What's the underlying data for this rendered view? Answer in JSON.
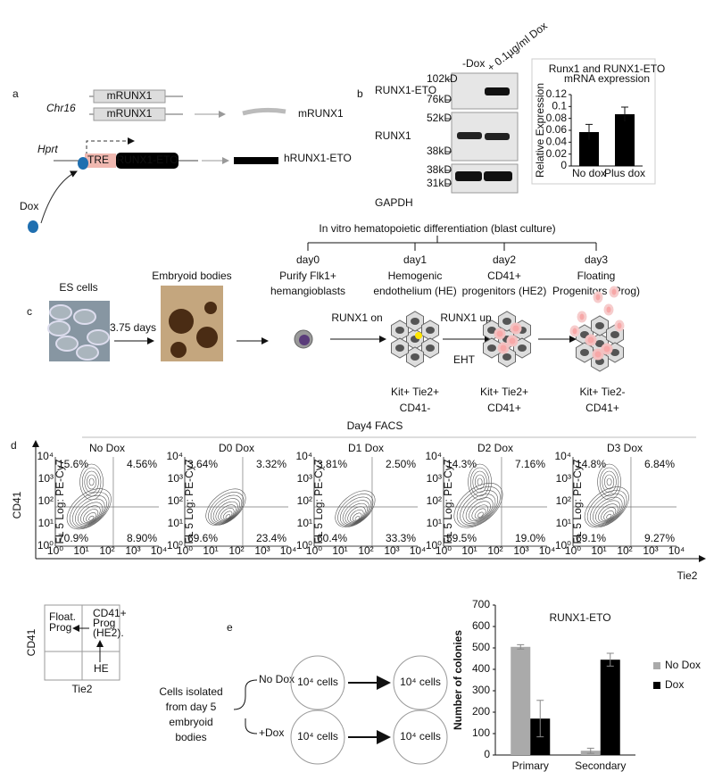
{
  "figure": {
    "a": {
      "label": "a",
      "genes": [
        "mRUNX1",
        "mRUNX1"
      ],
      "chr": "Chr16",
      "product": "mRUNX1",
      "locus": "Hprt",
      "promoter": "TRE",
      "transgene": "RUNX1-ETO",
      "transgene_product": "hRUNX1-ETO",
      "inducer": "Dox"
    },
    "b": {
      "label": "b",
      "lanes": [
        "-Dox",
        "+ 0.1µg/ml Dox"
      ],
      "blots": [
        {
          "name": "RUNX1-ETO",
          "markers": [
            "102kD",
            "76kD"
          ]
        },
        {
          "name": "RUNX1",
          "markers": [
            "52kD",
            "38kD"
          ]
        },
        {
          "name": "GAPDH",
          "markers": [
            "38kD",
            "31kD"
          ]
        }
      ]
    },
    "c": {
      "label": "c",
      "header": "In vitro hematopoietic differentiation (blast culture)",
      "stages": [
        {
          "day": "day0",
          "desc": [
            "Purify Flk1+",
            "hemangioblasts"
          ]
        },
        {
          "day": "day1",
          "desc": [
            "Hemogenic",
            "endothelium (HE)"
          ]
        },
        {
          "day": "day2",
          "desc": [
            "CD41+",
            "progenitors (HE2)"
          ]
        },
        {
          "day": "day3",
          "desc": [
            "Floating",
            "Progenitors (Prog)"
          ]
        }
      ],
      "es_cells": "ES cells",
      "duration": "3.75 days",
      "embryoid_bodies": "Embryoid bodies",
      "runx1_on": "RUNX1 on",
      "runx1_up": "RUNX1 up",
      "eht": "EHT",
      "phenotypes": [
        [
          "Kit+ Tie2+",
          "CD41-"
        ],
        [
          "Kit+ Tie2+",
          "CD41+"
        ],
        [
          "Kit+ Tie2-",
          "CD41+"
        ]
      ]
    },
    "d": {
      "label": "d",
      "title": "Day4 FACS",
      "y_axis": "CD41",
      "x_axis": "Tie2",
      "plot_axis_label": "FL 5 Log: PE-Cy7",
      "ticks": [
        "10⁰",
        "10¹",
        "10²",
        "10³",
        "10⁴"
      ],
      "plots": [
        {
          "title": "No Dox",
          "quadrants": [
            "15.6%",
            "4.56%",
            "70.9%",
            "8.90%"
          ]
        },
        {
          "title": "D0 Dox",
          "quadrants": [
            "3.64%",
            "3.32%",
            "69.6%",
            "23.4%"
          ]
        },
        {
          "title": "D1 Dox",
          "quadrants": [
            "3.81%",
            "2.50%",
            "60.4%",
            "33.3%"
          ]
        },
        {
          "title": "D2 Dox",
          "quadrants": [
            "14.3%",
            "7.16%",
            "59.5%",
            "19.0%"
          ]
        },
        {
          "title": "D3 Dox",
          "quadrants": [
            "14.8%",
            "6.84%",
            "69.1%",
            "9.27%"
          ]
        }
      ]
    },
    "quadrant_key": {
      "y_axis": "CD41",
      "x_axis": "Tie2",
      "float_prog": [
        "Float.",
        "Prog"
      ],
      "he2": [
        "CD41+",
        "Prog",
        "(HE2)."
      ],
      "he": "HE"
    },
    "e": {
      "label": "e",
      "source": [
        "Cells isolated",
        "from day 5",
        "embryoid",
        "bodies"
      ],
      "conditions": [
        "No Dox",
        "+Dox"
      ],
      "cells": [
        "10⁴ cells",
        "10⁴ cells",
        "10⁴ cells",
        "10⁴ cells"
      ]
    }
  },
  "chart_data": [
    {
      "type": "bar",
      "title": [
        "Runx1 and RUNX1-ETO",
        "mRNA expression"
      ],
      "ylabel": "Relative Expression",
      "categories": [
        "No dox",
        "Plus dox"
      ],
      "values": [
        0.057,
        0.087
      ],
      "errors": [
        0.013,
        0.012
      ],
      "color": "#000000",
      "ylim": [
        0,
        0.12
      ],
      "yticks": [
        0,
        0.02,
        0.04,
        0.06,
        0.08,
        0.1,
        0.12
      ]
    },
    {
      "type": "bar",
      "title": "RUNX1-ETO",
      "ylabel": "Number of colonies",
      "categories": [
        "Primary",
        "Secondary"
      ],
      "series": [
        {
          "name": "No Dox",
          "color": "#aaaaaa",
          "values": [
            505,
            20
          ],
          "errors": [
            10,
            12
          ]
        },
        {
          "name": "Dox",
          "color": "#000000",
          "values": [
            170,
            445
          ],
          "errors": [
            85,
            30
          ]
        }
      ],
      "ylim": [
        0,
        700
      ],
      "yticks": [
        0,
        100,
        200,
        300,
        400,
        500,
        600,
        700
      ],
      "legend": "right"
    }
  ]
}
